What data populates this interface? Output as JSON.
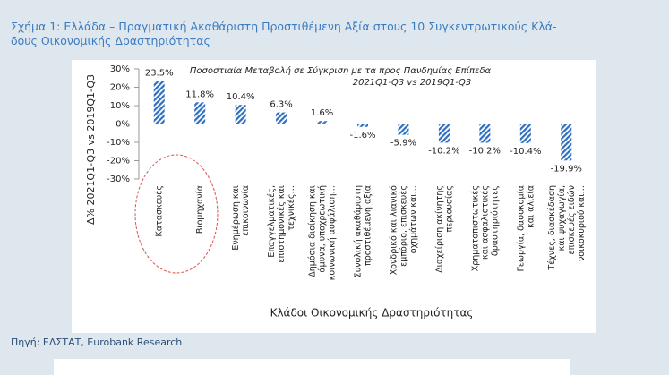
{
  "chart_data": {
    "type": "bar",
    "title": [
      "Σχήμα 1: Ελλάδα – Πραγματική Ακαθάριστη Προστιθέμενη Αξία στους 10 Συγκεντρωτικούς Κλά-",
      "δους Οικονομικής Δραστηριότητας"
    ],
    "annotation": [
      "Ποσοστιαία Μεταβολή σε Σύγκριση με τα προς Πανδημίας Επίπεδα",
      "2021Q1-Q3 vs 2019Q1-Q3"
    ],
    "y_label": "Δ% 2021Q1-Q3 vs 2019Q1-Q3",
    "x_label": "Κλάδοι Οικονομικής Δραστηριότητας",
    "categories": [
      "Κατασκευές",
      "Βιομηχανία",
      "Ενημέρωση και επικοινωνία",
      "Επαγγελματικές, επιστημονικές και τεχνικές…",
      "Δημόσια διοίκηση και άμυνα, υποχρεωτική κοινωνική ασφάλιση…",
      "Συνολική ακαθάριστη προστιθέμενη αξία",
      "Χονδρικό και λιανικό εμπόριο, επισκευές οχημάτων και…",
      "Διαχείριση ακίνητης περιουσίας",
      "Χρηματοπιστωτικές και ασφαλιστικές δραστηριότητες",
      "Γεωργία, δασοκομία και αλιεία",
      "Τέχνες, διασκέδαση και ψυχαγωγία, επισκευές ειδών νοικοκυριού και…"
    ],
    "values": [
      23.5,
      11.8,
      10.4,
      6.3,
      1.6,
      -1.6,
      -5.9,
      -10.2,
      -10.2,
      -10.4,
      -19.9
    ],
    "value_labels": [
      "23.5%",
      "11.8%",
      "10.4%",
      "6.3%",
      "1.6%",
      "-1.6%",
      "-5.9%",
      "-10.2%",
      "-10.2%",
      "-10.4%",
      "-19.9%"
    ],
    "color": "#2f6fc0",
    "ylim": [
      -30,
      30
    ],
    "yticks": [
      {
        "value": 30,
        "label": "30%"
      },
      {
        "value": 20,
        "label": "20%"
      },
      {
        "value": 10,
        "label": "10%"
      },
      {
        "value": 0,
        "label": "0%"
      },
      {
        "value": -10,
        "label": "-10%"
      },
      {
        "value": -20,
        "label": "-20%"
      },
      {
        "value": -30,
        "label": "-30%"
      }
    ],
    "source": "Πηγή: ΕΛΣΤΑΤ, Eurobank Research"
  }
}
